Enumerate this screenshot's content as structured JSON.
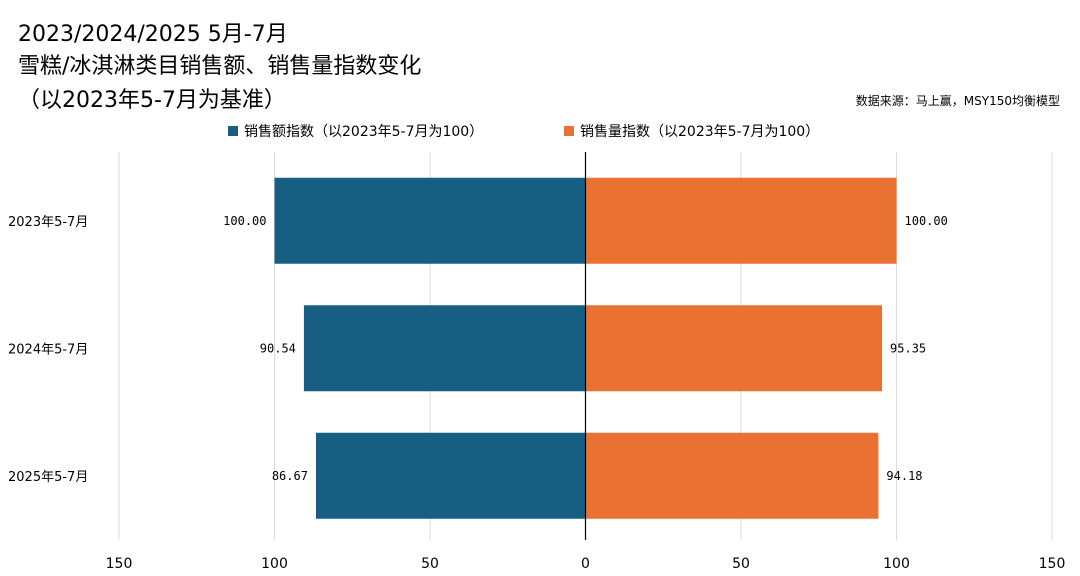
{
  "title_lines": [
    "2023/2024/2025 5月-7月",
    "雪糕/冰淇淋类目销售额、销售量指数变化",
    "（以2023年5-7月为基准）"
  ],
  "source": "数据来源：马上赢，MSY150均衡模型",
  "chart_data": {
    "type": "bar",
    "orientation": "horizontal-butterfly",
    "categories": [
      "2023年5-7月",
      "2024年5-7月",
      "2025年5-7月"
    ],
    "series": [
      {
        "name": "销售额指数（以2023年5-7月为100）",
        "color": "#175e83",
        "side": "left",
        "values": [
          100.0,
          90.54,
          86.67
        ],
        "labels": [
          "100.00",
          "90.54",
          "86.67"
        ]
      },
      {
        "name": "销售量指数（以2023年5-7月为100）",
        "color": "#e97132",
        "side": "right",
        "values": [
          100.0,
          95.35,
          94.18
        ],
        "labels": [
          "100.00",
          "95.35",
          "94.18"
        ]
      }
    ],
    "xlim": [
      -150,
      150
    ],
    "x_ticks": [
      -150,
      -100,
      -50,
      0,
      50,
      100,
      150
    ],
    "x_tick_labels": [
      "150",
      "100",
      "50",
      "0",
      "50",
      "100",
      "150"
    ],
    "grid": true,
    "legend": "top"
  }
}
